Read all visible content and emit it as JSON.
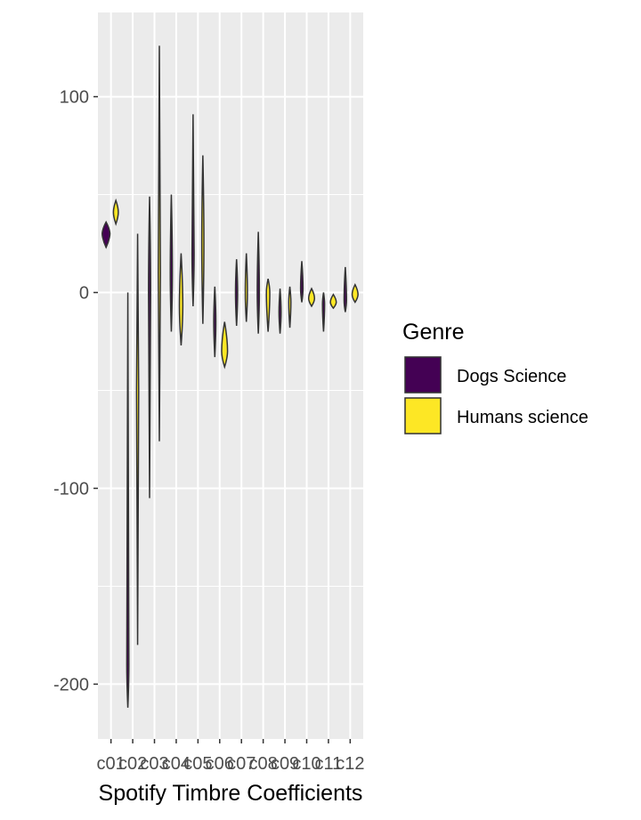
{
  "chart_data": {
    "type": "violin",
    "xlabel": "Spotify Timbre Coefficients",
    "ylabel": "",
    "ylim": [
      -228,
      143
    ],
    "yticks": [
      100,
      0,
      -100,
      -200
    ],
    "grid": true,
    "legend_position": "right",
    "legend_title": "Genre",
    "categories": [
      "c01",
      "c02",
      "c03",
      "c04",
      "c05",
      "c06",
      "c07",
      "c08",
      "c09",
      "c10",
      "c11",
      "c12"
    ],
    "tick_labels": [
      "c01",
      "c02",
      "c03",
      "c04",
      "c05",
      "c06",
      "c07",
      "c08",
      "c09",
      "c10",
      "c11",
      "c12"
    ],
    "series": [
      {
        "name": "Dogs Science",
        "color": "#440154",
        "violins": [
          {
            "min": 23,
            "max": 36,
            "center": 30,
            "width": 0.8
          },
          {
            "min": -212,
            "max": 0,
            "center": -190,
            "width": 0.1
          },
          {
            "min": -105,
            "max": 49,
            "center": 0,
            "width": 0.06
          },
          {
            "min": -20,
            "max": 50,
            "center": 10,
            "width": 0.08
          },
          {
            "min": -7,
            "max": 91,
            "center": 20,
            "width": 0.06
          },
          {
            "min": -33,
            "max": 3,
            "center": -15,
            "width": 0.06
          },
          {
            "min": -17,
            "max": 17,
            "center": 0,
            "width": 0.1
          },
          {
            "min": -21,
            "max": 31,
            "center": 0,
            "width": 0.08
          },
          {
            "min": -21,
            "max": 2,
            "center": -10,
            "width": 0.12
          },
          {
            "min": -5,
            "max": 16,
            "center": 2,
            "width": 0.25
          },
          {
            "min": -20,
            "max": 0,
            "center": -6,
            "width": 0.12
          },
          {
            "min": -10,
            "max": 13,
            "center": -4,
            "width": 0.25
          }
        ]
      },
      {
        "name": "Humans science",
        "color": "#fde725",
        "violins": [
          {
            "min": 35,
            "max": 47,
            "center": 41,
            "width": 0.5
          },
          {
            "min": -180,
            "max": 30,
            "center": -50,
            "width": 0.12
          },
          {
            "min": -76,
            "max": 126,
            "center": 10,
            "width": 0.06
          },
          {
            "min": -27,
            "max": 20,
            "center": -7,
            "width": 0.35
          },
          {
            "min": -16,
            "max": 70,
            "center": 25,
            "width": 0.1
          },
          {
            "min": -38,
            "max": -15,
            "center": -30,
            "width": 0.6
          },
          {
            "min": -15,
            "max": 20,
            "center": 0,
            "width": 0.1
          },
          {
            "min": -20,
            "max": 7,
            "center": 0,
            "width": 0.35
          },
          {
            "min": -18,
            "max": 3,
            "center": -5,
            "width": 0.1
          },
          {
            "min": -7,
            "max": 2,
            "center": -3,
            "width": 0.6
          },
          {
            "min": -8,
            "max": -1,
            "center": -5,
            "width": 0.6
          },
          {
            "min": -5,
            "max": 4,
            "center": -1,
            "width": 0.6
          }
        ]
      }
    ]
  }
}
